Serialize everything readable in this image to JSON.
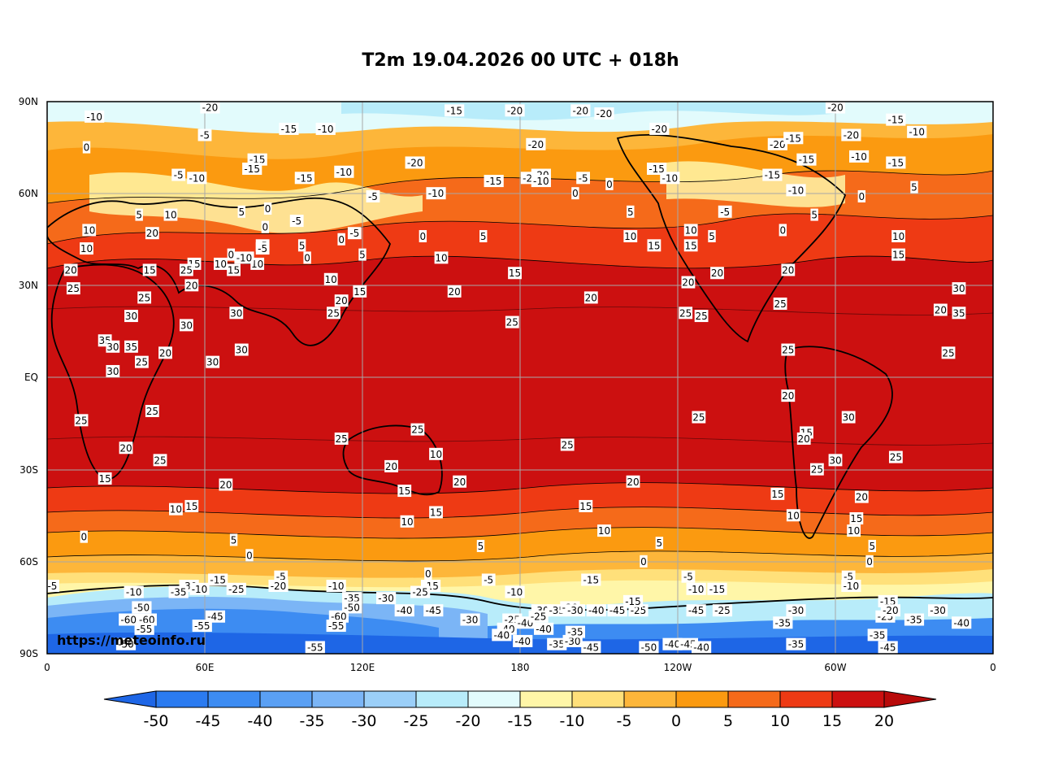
{
  "title": "T2m 19.04.2026 00 UTC + 018h",
  "credit": "https://meteoinfo.ru",
  "map": {
    "lat_labels": [
      "90N",
      "60N",
      "30N",
      "EQ",
      "30S",
      "60S",
      "90S"
    ],
    "lon_labels": [
      "0",
      "60E",
      "120E",
      "180",
      "120W",
      "60W",
      "0"
    ]
  },
  "colorbar": {
    "tick_labels": [
      "-50",
      "-45",
      "-40",
      "-35",
      "-30",
      "-25",
      "-20",
      "-15",
      "-10",
      "-5",
      "0",
      "5",
      "10",
      "15",
      "20"
    ],
    "colors": [
      "#1e66e6",
      "#2b7bf0",
      "#3d8cf2",
      "#5aa0f4",
      "#7bb5f6",
      "#9bcff8",
      "#b8ecfa",
      "#e2fbfc",
      "#fff6a8",
      "#ffe07a",
      "#fdb63a",
      "#fb9a10",
      "#f56a1a",
      "#ee3a14",
      "#cc1010",
      "#b80a0a"
    ]
  },
  "contour_labels": [
    {
      "t": "-10",
      "lon": 18,
      "lat": 85
    },
    {
      "t": "-20",
      "lon": 62,
      "lat": 88
    },
    {
      "t": "-15",
      "lon": 155,
      "lat": 87
    },
    {
      "t": "-20",
      "lon": 178,
      "lat": 87
    },
    {
      "t": "-20",
      "lon": -157,
      "lat": 87
    },
    {
      "t": "-20",
      "lon": -148,
      "lat": 86
    },
    {
      "t": "-20",
      "lon": -127,
      "lat": 81
    },
    {
      "t": "-20",
      "lon": -60,
      "lat": 88
    },
    {
      "t": "-15",
      "lon": -37,
      "lat": 84
    },
    {
      "t": "-20",
      "lon": -54,
      "lat": 79
    },
    {
      "t": "-10",
      "lon": -29,
      "lat": 80
    },
    {
      "t": "0",
      "lon": 15,
      "lat": 75
    },
    {
      "t": "-5",
      "lon": 60,
      "lat": 79
    },
    {
      "t": "-15",
      "lon": 92,
      "lat": 81
    },
    {
      "t": "-10",
      "lon": 106,
      "lat": 81
    },
    {
      "t": "-20",
      "lon": 186,
      "lat": 76
    },
    {
      "t": "-20",
      "lon": -82,
      "lat": 76
    },
    {
      "t": "-15",
      "lon": -76,
      "lat": 78
    },
    {
      "t": "-15",
      "lon": 80,
      "lat": 71
    },
    {
      "t": "-15",
      "lon": 78,
      "lat": 68
    },
    {
      "t": "-5",
      "lon": 50,
      "lat": 66
    },
    {
      "t": "-10",
      "lon": 57,
      "lat": 65
    },
    {
      "t": "-15",
      "lon": 98,
      "lat": 65
    },
    {
      "t": "-10",
      "lon": 113,
      "lat": 67
    },
    {
      "t": "-20",
      "lon": 140,
      "lat": 70
    },
    {
      "t": "-20",
      "lon": 184,
      "lat": 65
    },
    {
      "t": "-15",
      "lon": 170,
      "lat": 64
    },
    {
      "t": "-20",
      "lon": -172,
      "lat": 66
    },
    {
      "t": "-10",
      "lon": -172,
      "lat": 64
    },
    {
      "t": "-5",
      "lon": -156,
      "lat": 65
    },
    {
      "t": "0",
      "lon": -146,
      "lat": 63
    },
    {
      "t": "0",
      "lon": -159,
      "lat": 60
    },
    {
      "t": "-10",
      "lon": -123,
      "lat": 65
    },
    {
      "t": "-15",
      "lon": -128,
      "lat": 68
    },
    {
      "t": "-15",
      "lon": -71,
      "lat": 71
    },
    {
      "t": "-10",
      "lon": -51,
      "lat": 72
    },
    {
      "t": "-15",
      "lon": -37,
      "lat": 70
    },
    {
      "t": "5",
      "lon": -30,
      "lat": 62
    },
    {
      "t": "0",
      "lon": -50,
      "lat": 59
    },
    {
      "t": "-10",
      "lon": -75,
      "lat": 61
    },
    {
      "t": "-15",
      "lon": -84,
      "lat": 66
    },
    {
      "t": "-10",
      "lon": 148,
      "lat": 60
    },
    {
      "t": "-5",
      "lon": 124,
      "lat": 59
    },
    {
      "t": "5",
      "lon": 35,
      "lat": 53
    },
    {
      "t": "10",
      "lon": 47,
      "lat": 53
    },
    {
      "t": "10",
      "lon": 16,
      "lat": 48
    },
    {
      "t": "20",
      "lon": 40,
      "lat": 47
    },
    {
      "t": "5",
      "lon": 74,
      "lat": 54
    },
    {
      "t": "0",
      "lon": 84,
      "lat": 55
    },
    {
      "t": "0",
      "lon": 83,
      "lat": 49
    },
    {
      "t": "-5",
      "lon": 95,
      "lat": 51
    },
    {
      "t": "-5",
      "lon": 117,
      "lat": 47
    },
    {
      "t": "0",
      "lon": 112,
      "lat": 45
    },
    {
      "t": "5",
      "lon": 97,
      "lat": 43
    },
    {
      "t": "-5",
      "lon": 82,
      "lat": 43
    },
    {
      "t": "5",
      "lon": 120,
      "lat": 40
    },
    {
      "t": "0",
      "lon": 99,
      "lat": 39
    },
    {
      "t": "0",
      "lon": 143,
      "lat": 46
    },
    {
      "t": "5",
      "lon": 166,
      "lat": 46
    },
    {
      "t": "10",
      "lon": 150,
      "lat": 39
    },
    {
      "t": "5",
      "lon": -138,
      "lat": 54
    },
    {
      "t": "10",
      "lon": -138,
      "lat": 46
    },
    {
      "t": "15",
      "lon": -129,
      "lat": 43
    },
    {
      "t": "10",
      "lon": -115,
      "lat": 48
    },
    {
      "t": "5",
      "lon": -107,
      "lat": 46
    },
    {
      "t": "0",
      "lon": -80,
      "lat": 48
    },
    {
      "t": "-5",
      "lon": -102,
      "lat": 54
    },
    {
      "t": "5",
      "lon": -68,
      "lat": 53
    },
    {
      "t": "10",
      "lon": -36,
      "lat": 46
    },
    {
      "t": "15",
      "lon": -36,
      "lat": 40
    },
    {
      "t": "15",
      "lon": -115,
      "lat": 43
    },
    {
      "t": "20",
      "lon": -105,
      "lat": 34
    },
    {
      "t": "20",
      "lon": -78,
      "lat": 35
    },
    {
      "t": "20",
      "lon": -116,
      "lat": 31
    },
    {
      "t": "25",
      "lon": -117,
      "lat": 21
    },
    {
      "t": "25",
      "lon": -111,
      "lat": 20
    },
    {
      "t": "25",
      "lon": -81,
      "lat": 24
    },
    {
      "t": "25",
      "lon": -78,
      "lat": 9
    },
    {
      "t": "20",
      "lon": -20,
      "lat": 22
    },
    {
      "t": "35",
      "lon": -13,
      "lat": 21
    },
    {
      "t": "30",
      "lon": -13,
      "lat": 29
    },
    {
      "t": "25",
      "lon": -17,
      "lat": 8
    },
    {
      "t": "10",
      "lon": 80,
      "lat": 37
    },
    {
      "t": "15",
      "lon": 71,
      "lat": 35
    },
    {
      "t": "10",
      "lon": 66,
      "lat": 37
    },
    {
      "t": "0",
      "lon": 70,
      "lat": 40
    },
    {
      "t": "-10",
      "lon": 75,
      "lat": 39
    },
    {
      "t": "-5",
      "lon": 82,
      "lat": 42
    },
    {
      "t": "15",
      "lon": 56,
      "lat": 37
    },
    {
      "t": "25",
      "lon": 53,
      "lat": 35
    },
    {
      "t": "20",
      "lon": 55,
      "lat": 30
    },
    {
      "t": "10",
      "lon": 108,
      "lat": 32
    },
    {
      "t": "20",
      "lon": 112,
      "lat": 25
    },
    {
      "t": "15",
      "lon": 119,
      "lat": 28
    },
    {
      "t": "25",
      "lon": 109,
      "lat": 21
    },
    {
      "t": "20",
      "lon": 155,
      "lat": 28
    },
    {
      "t": "25",
      "lon": 177,
      "lat": 18
    },
    {
      "t": "15",
      "lon": 178,
      "lat": 34
    },
    {
      "t": "20",
      "lon": -153,
      "lat": 26
    },
    {
      "t": "10",
      "lon": 15,
      "lat": 42
    },
    {
      "t": "20",
      "lon": 9,
      "lat": 35
    },
    {
      "t": "25",
      "lon": 10,
      "lat": 29
    },
    {
      "t": "15",
      "lon": 39,
      "lat": 35
    },
    {
      "t": "25",
      "lon": 37,
      "lat": 26
    },
    {
      "t": "30",
      "lon": 32,
      "lat": 20
    },
    {
      "t": "35",
      "lon": 22,
      "lat": 12
    },
    {
      "t": "30",
      "lon": 25,
      "lat": 10
    },
    {
      "t": "35",
      "lon": 32,
      "lat": 10
    },
    {
      "t": "25",
      "lon": 36,
      "lat": 5
    },
    {
      "t": "20",
      "lon": 45,
      "lat": 8
    },
    {
      "t": "30",
      "lon": 25,
      "lat": 2
    },
    {
      "t": "30",
      "lon": 53,
      "lat": 17
    },
    {
      "t": "30",
      "lon": 72,
      "lat": 21
    },
    {
      "t": "30",
      "lon": 63,
      "lat": 5
    },
    {
      "t": "30",
      "lon": 74,
      "lat": 9
    },
    {
      "t": "25",
      "lon": 13,
      "lat": -14
    },
    {
      "t": "25",
      "lon": 40,
      "lat": -11
    },
    {
      "t": "20",
      "lon": 30,
      "lat": -23
    },
    {
      "t": "25",
      "lon": 43,
      "lat": -27
    },
    {
      "t": "15",
      "lon": 22,
      "lat": -33
    },
    {
      "t": "20",
      "lon": 68,
      "lat": -35
    },
    {
      "t": "15",
      "lon": 55,
      "lat": -42
    },
    {
      "t": "10",
      "lon": 49,
      "lat": -43
    },
    {
      "t": "0",
      "lon": 14,
      "lat": -52
    },
    {
      "t": "5",
      "lon": 71,
      "lat": -53
    },
    {
      "t": "0",
      "lon": 77,
      "lat": -58
    },
    {
      "t": "25",
      "lon": 112,
      "lat": -20
    },
    {
      "t": "25",
      "lon": 141,
      "lat": -17
    },
    {
      "t": "10",
      "lon": 148,
      "lat": -25
    },
    {
      "t": "20",
      "lon": 131,
      "lat": -29
    },
    {
      "t": "15",
      "lon": 136,
      "lat": -37
    },
    {
      "t": "20",
      "lon": 157,
      "lat": -34
    },
    {
      "t": "15",
      "lon": 148,
      "lat": -44
    },
    {
      "t": "10",
      "lon": 137,
      "lat": -47
    },
    {
      "t": "25",
      "lon": -162,
      "lat": -22
    },
    {
      "t": "20",
      "lon": -137,
      "lat": -34
    },
    {
      "t": "15",
      "lon": -155,
      "lat": -42
    },
    {
      "t": "10",
      "lon": -148,
      "lat": -50
    },
    {
      "t": "5",
      "lon": -127,
      "lat": -54
    },
    {
      "t": "5",
      "lon": 165,
      "lat": -55
    },
    {
      "t": "0",
      "lon": -133,
      "lat": -60
    },
    {
      "t": "25",
      "lon": -112,
      "lat": -13
    },
    {
      "t": "20",
      "lon": -78,
      "lat": -6
    },
    {
      "t": "15",
      "lon": -71,
      "lat": -18
    },
    {
      "t": "20",
      "lon": -72,
      "lat": -20
    },
    {
      "t": "30",
      "lon": -55,
      "lat": -13
    },
    {
      "t": "25",
      "lon": -37,
      "lat": -26
    },
    {
      "t": "30",
      "lon": -60,
      "lat": -27
    },
    {
      "t": "25",
      "lon": -67,
      "lat": -30
    },
    {
      "t": "15",
      "lon": -82,
      "lat": -38
    },
    {
      "t": "10",
      "lon": -76,
      "lat": -45
    },
    {
      "t": "20",
      "lon": -50,
      "lat": -39
    },
    {
      "t": "15",
      "lon": -52,
      "lat": -46
    },
    {
      "t": "10",
      "lon": -53,
      "lat": -50
    },
    {
      "t": "5",
      "lon": -46,
      "lat": -55
    },
    {
      "t": "0",
      "lon": -47,
      "lat": -60
    },
    {
      "t": "-5",
      "lon": -55,
      "lat": -65
    },
    {
      "t": "-10",
      "lon": -54,
      "lat": -68
    },
    {
      "t": "-5",
      "lon": -116,
      "lat": -65
    },
    {
      "t": "-10",
      "lon": -113,
      "lat": -69
    },
    {
      "t": "-15",
      "lon": -153,
      "lat": -66
    },
    {
      "t": "-5",
      "lon": 168,
      "lat": -66
    },
    {
      "t": "-10",
      "lon": 178,
      "lat": -70
    },
    {
      "t": "0",
      "lon": 145,
      "lat": -64
    },
    {
      "t": "-15",
      "lon": 146,
      "lat": -68
    },
    {
      "t": "-25",
      "lon": 142,
      "lat": -70
    },
    {
      "t": "-30",
      "lon": 129,
      "lat": -72
    },
    {
      "t": "-5",
      "lon": 89,
      "lat": -65
    },
    {
      "t": "-20",
      "lon": 88,
      "lat": -68
    },
    {
      "t": "-15",
      "lon": 65,
      "lat": -66
    },
    {
      "t": "-25",
      "lon": 72,
      "lat": -69
    },
    {
      "t": "-10",
      "lon": 110,
      "lat": -68
    },
    {
      "t": "-35",
      "lon": 116,
      "lat": -72
    },
    {
      "t": "-50",
      "lon": 116,
      "lat": -75
    },
    {
      "t": "-45",
      "lon": 147,
      "lat": -76
    },
    {
      "t": "-40",
      "lon": 136,
      "lat": -76
    },
    {
      "t": "-60",
      "lon": 111,
      "lat": -78
    },
    {
      "t": "-55",
      "lon": 110,
      "lat": -81
    },
    {
      "t": "-10",
      "lon": 33,
      "lat": -70
    },
    {
      "t": "-30",
      "lon": 54,
      "lat": -68
    },
    {
      "t": "-35",
      "lon": 50,
      "lat": -70
    },
    {
      "t": "-10",
      "lon": 58,
      "lat": -69
    },
    {
      "t": "-50",
      "lon": 36,
      "lat": -75
    },
    {
      "t": "-60",
      "lon": 38,
      "lat": -79
    },
    {
      "t": "-55",
      "lon": 37,
      "lat": -82
    },
    {
      "t": "-45",
      "lon": 64,
      "lat": -78
    },
    {
      "t": "-55",
      "lon": 59,
      "lat": -81
    },
    {
      "t": "-50",
      "lon": 30,
      "lat": -87
    },
    {
      "t": "-55",
      "lon": 102,
      "lat": -88
    },
    {
      "t": "-5",
      "lon": 2,
      "lat": -68
    },
    {
      "t": "-30",
      "lon": -172,
      "lat": -76
    },
    {
      "t": "-35",
      "lon": -166,
      "lat": -76
    },
    {
      "t": "-20",
      "lon": -161,
      "lat": -75
    },
    {
      "t": "-40",
      "lon": -151,
      "lat": -76
    },
    {
      "t": "-45",
      "lon": -143,
      "lat": -76
    },
    {
      "t": "-25",
      "lon": -135,
      "lat": -76
    },
    {
      "t": "-15",
      "lon": -137,
      "lat": -73
    },
    {
      "t": "-25",
      "lon": -183,
      "lat": -79
    },
    {
      "t": "-40",
      "lon": -185,
      "lat": -82
    },
    {
      "t": "-40",
      "lon": -179,
      "lat": -86
    },
    {
      "t": "-35",
      "lon": -166,
      "lat": -87
    },
    {
      "t": "-30",
      "lon": -160,
      "lat": -86
    },
    {
      "t": "-35",
      "lon": -159,
      "lat": -83
    },
    {
      "t": "-45",
      "lon": -153,
      "lat": -88
    },
    {
      "t": "-50",
      "lon": -131,
      "lat": -88
    },
    {
      "t": "-40",
      "lon": -122,
      "lat": -87
    },
    {
      "t": "-45",
      "lon": -116,
      "lat": -87
    },
    {
      "t": "-40",
      "lon": -111,
      "lat": -88
    },
    {
      "t": "-30",
      "lon": -159,
      "lat": -76
    },
    {
      "t": "-40",
      "lon": -178,
      "lat": -80
    },
    {
      "t": "-35",
      "lon": -80,
      "lat": -80
    },
    {
      "t": "-30",
      "lon": -75,
      "lat": -76
    },
    {
      "t": "-35",
      "lon": -75,
      "lat": -87
    },
    {
      "t": "-35",
      "lon": -44,
      "lat": -84
    },
    {
      "t": "-45",
      "lon": -40,
      "lat": -88
    },
    {
      "t": "-25",
      "lon": -41,
      "lat": -78
    },
    {
      "t": "-15",
      "lon": -40,
      "lat": -73
    },
    {
      "t": "-20",
      "lon": -39,
      "lat": -76
    },
    {
      "t": "-35",
      "lon": -30,
      "lat": -79
    },
    {
      "t": "-30",
      "lon": -21,
      "lat": -76
    },
    {
      "t": "-40",
      "lon": -12,
      "lat": -80
    },
    {
      "t": "-60",
      "lon": 31,
      "lat": -79
    },
    {
      "t": "-30",
      "lon": 161,
      "lat": -79
    },
    {
      "t": "-40",
      "lon": 173,
      "lat": -84
    },
    {
      "t": "-40",
      "lon": 189,
      "lat": -82
    },
    {
      "t": "-25",
      "lon": 187,
      "lat": -78
    },
    {
      "t": "-15",
      "lon": -105,
      "lat": -69
    },
    {
      "t": "-45",
      "lon": -113,
      "lat": -76
    },
    {
      "t": "-25",
      "lon": -103,
      "lat": -76
    }
  ]
}
